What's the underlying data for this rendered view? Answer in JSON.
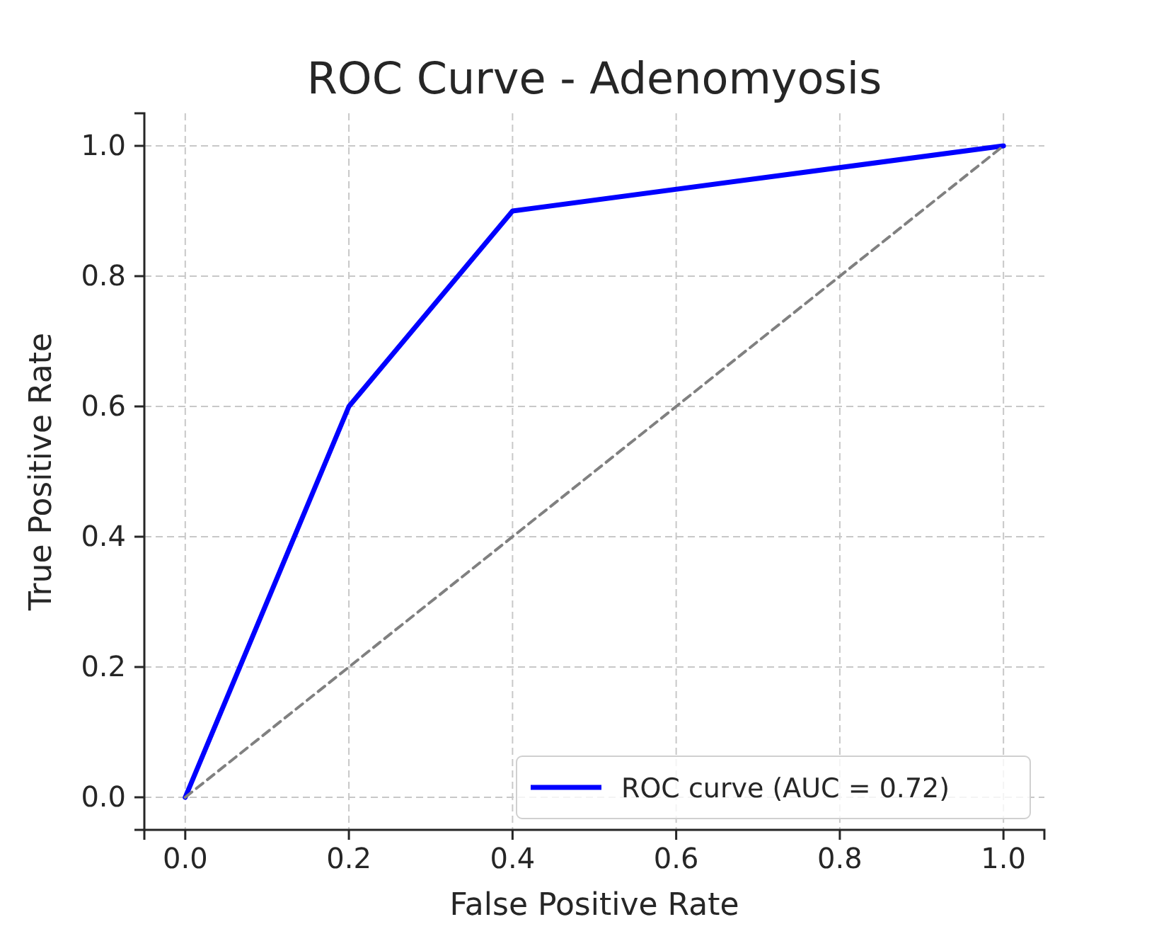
{
  "chart_data": {
    "type": "line",
    "title": "ROC Curve - Adenomyosis",
    "xlabel": "False Positive Rate",
    "ylabel": "True Positive Rate",
    "xlim": [
      -0.05,
      1.05
    ],
    "ylim": [
      -0.05,
      1.05
    ],
    "xticks": [
      {
        "value": 0,
        "label": "0.0"
      },
      0.2,
      0.4,
      0.6,
      0.8,
      {
        "value": 1,
        "label": "1.0"
      }
    ],
    "yticks": [
      {
        "value": 0,
        "label": "0.0"
      },
      0.2,
      0.4,
      0.6,
      0.8,
      {
        "value": 1,
        "label": "1.0"
      }
    ],
    "grid": true,
    "legend": "bottom right",
    "marker": "none",
    "series": [
      {
        "name": "ROC curve (AUC = 0.72)",
        "color": "#0000ff",
        "x": [
          0,
          0.2,
          0.4,
          1
        ],
        "values": [
          0,
          0.6,
          0.9,
          1
        ],
        "line_style": "solid"
      },
      {
        "color": "#808080",
        "x": [
          0,
          1
        ],
        "values": [
          0,
          1
        ],
        "line_style": "dashed"
      }
    ]
  }
}
